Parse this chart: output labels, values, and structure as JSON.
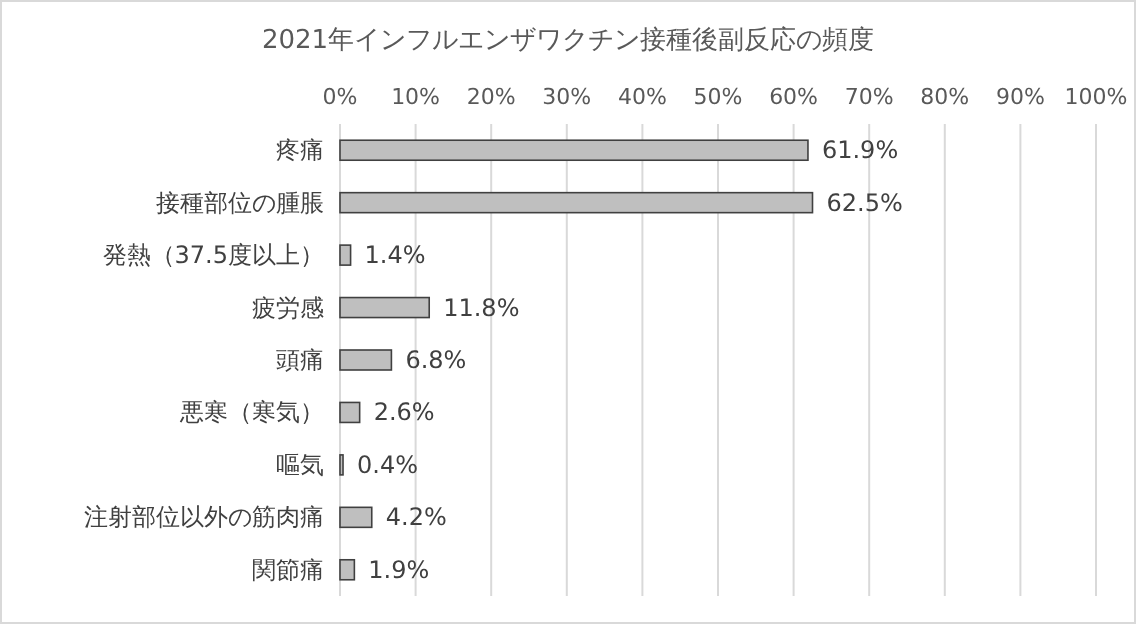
{
  "chart_data": {
    "type": "bar",
    "orientation": "horizontal",
    "title": "2021年インフルエンザワクチン接種後副反応の頻度",
    "categories": [
      "疼痛",
      "接種部位の腫脹",
      "発熱（37.5度以上）",
      "疲労感",
      "頭痛",
      "悪寒（寒気）",
      "嘔気",
      "注射部位以外の筋肉痛",
      "関節痛"
    ],
    "values": [
      61.9,
      62.5,
      1.4,
      11.8,
      6.8,
      2.6,
      0.4,
      4.2,
      1.9
    ],
    "value_labels": [
      "61.9%",
      "62.5%",
      "1.4%",
      "11.8%",
      "6.8%",
      "2.6%",
      "0.4%",
      "4.2%",
      "1.9%"
    ],
    "color": "#bfbfbf",
    "xlim": [
      0,
      100
    ],
    "xticks": [
      {
        "value": 0,
        "label": "0%"
      },
      {
        "value": 10,
        "label": "10%"
      },
      {
        "value": 20,
        "label": "20%"
      },
      {
        "value": 30,
        "label": "30%"
      },
      {
        "value": 40,
        "label": "40%"
      },
      {
        "value": 50,
        "label": "50%"
      },
      {
        "value": 60,
        "label": "60%"
      },
      {
        "value": 70,
        "label": "70%"
      },
      {
        "value": 80,
        "label": "80%"
      },
      {
        "value": 90,
        "label": "90%"
      },
      {
        "value": 100,
        "label": "100%"
      }
    ],
    "grid": "x"
  }
}
